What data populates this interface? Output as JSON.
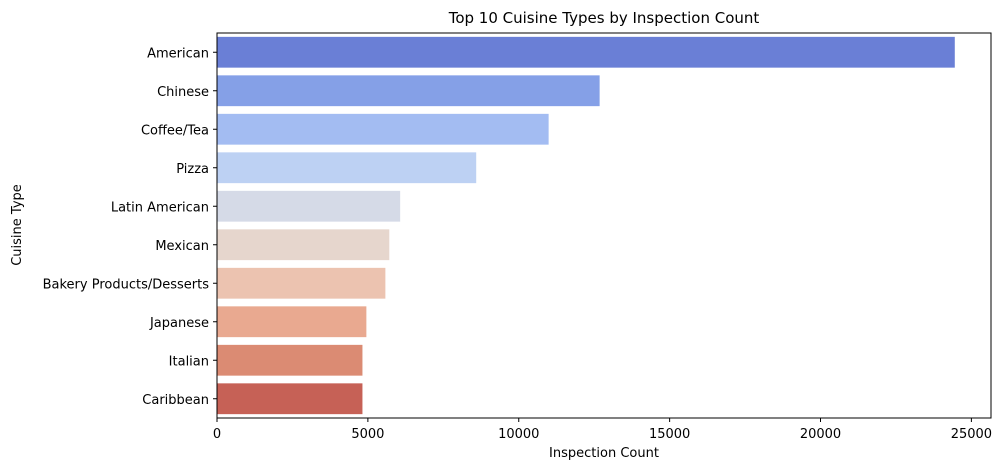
{
  "chart_data": {
    "type": "bar",
    "orientation": "horizontal",
    "title": "Top 10 Cuisine Types by Inspection Count",
    "xlabel": "Inspection Count",
    "ylabel": "Cuisine Type",
    "categories": [
      "American",
      "Chinese",
      "Coffee/Tea",
      "Pizza",
      "Latin American",
      "Mexican",
      "Bakery Products/Desserts",
      "Japanese",
      "Italian",
      "Caribbean"
    ],
    "values": [
      24450,
      12680,
      10990,
      8590,
      6070,
      5710,
      5580,
      4950,
      4820,
      4820
    ],
    "colors": [
      "#6a7fd6",
      "#85a0e7",
      "#a3bcf2",
      "#bdd1f3",
      "#d5dae7",
      "#e6d6cd",
      "#ecc3b0",
      "#e9a990",
      "#db8b73",
      "#c66156"
    ],
    "xlim": [
      0,
      25650
    ],
    "xticks": [
      0,
      5000,
      10000,
      15000,
      20000,
      25000
    ],
    "xtick_labels": [
      "0",
      "5000",
      "10000",
      "15000",
      "20000",
      "25000"
    ],
    "grid": false,
    "legend": "none"
  }
}
